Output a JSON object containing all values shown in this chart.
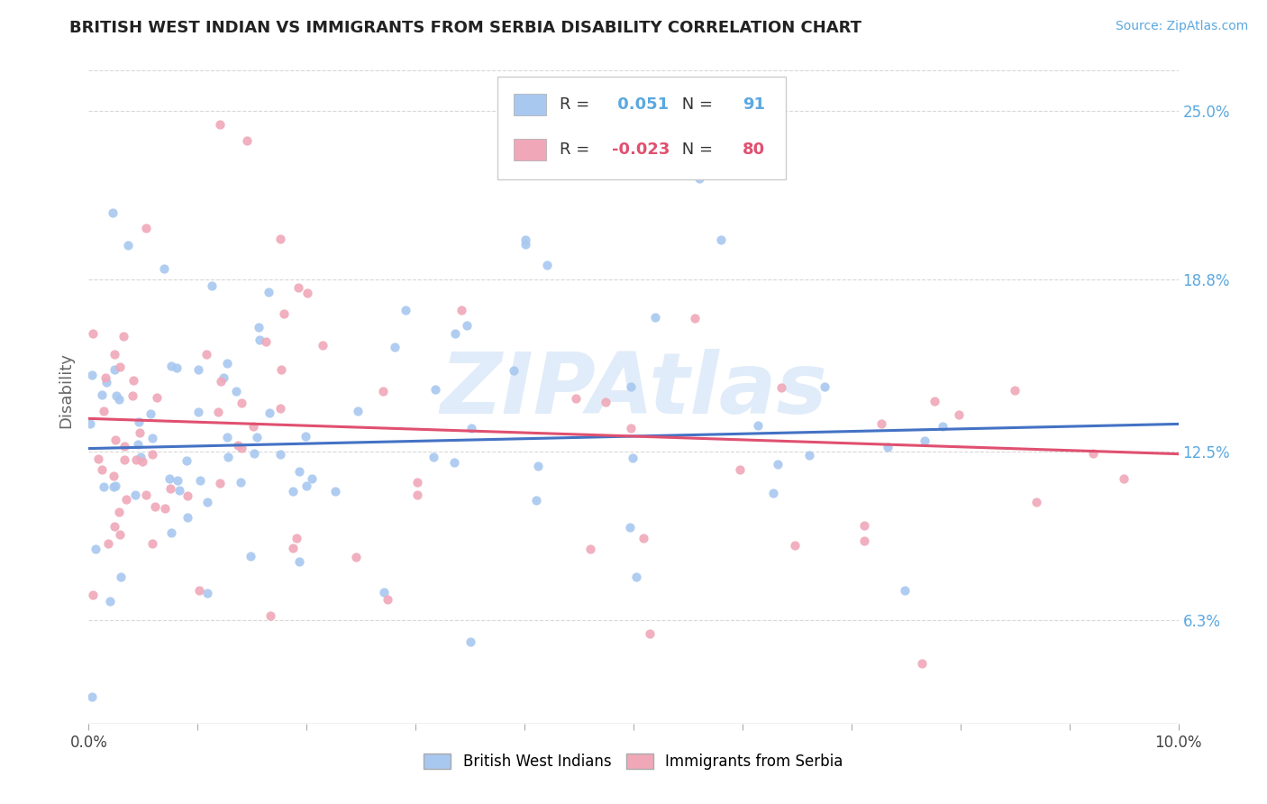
{
  "title": "BRITISH WEST INDIAN VS IMMIGRANTS FROM SERBIA DISABILITY CORRELATION CHART",
  "source_text": "Source: ZipAtlas.com",
  "ylabel": "Disability",
  "xmin": 0.0,
  "xmax": 0.1,
  "ymin": 0.025,
  "ymax": 0.27,
  "yticks": [
    0.063,
    0.125,
    0.188,
    0.25
  ],
  "ytick_labels": [
    "6.3%",
    "12.5%",
    "18.8%",
    "25.0%"
  ],
  "xticks": [
    0.0,
    0.01,
    0.02,
    0.03,
    0.04,
    0.05,
    0.06,
    0.07,
    0.08,
    0.09,
    0.1
  ],
  "xtick_labels": [
    "0.0%",
    "",
    "",
    "",
    "",
    "",
    "",
    "",
    "",
    "",
    "10.0%"
  ],
  "R_blue": 0.051,
  "N_blue": 91,
  "R_pink": -0.023,
  "N_pink": 80,
  "color_blue": "#a8c8f0",
  "color_pink": "#f0a8b8",
  "line_color_blue": "#4472c4",
  "line_color_pink": "#e05070",
  "watermark_text": "ZIPAtlas",
  "watermark_color": "#c8ddf5",
  "legend_labels": [
    "British West Indians",
    "Immigrants from Serbia"
  ],
  "background_color": "#ffffff",
  "grid_color": "#d8d8d8",
  "title_color": "#222222",
  "source_color": "#5ba8e0",
  "ytick_color": "#5ba8e0"
}
